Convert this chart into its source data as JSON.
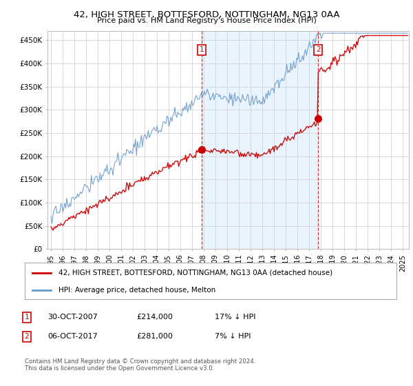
{
  "title": "42, HIGH STREET, BOTTESFORD, NOTTINGHAM, NG13 0AA",
  "subtitle": "Price paid vs. HM Land Registry's House Price Index (HPI)",
  "red_label": "42, HIGH STREET, BOTTESFORD, NOTTINGHAM, NG13 0AA (detached house)",
  "blue_label": "HPI: Average price, detached house, Melton",
  "annotation1_date": "30-OCT-2007",
  "annotation1_price": "£214,000",
  "annotation1_hpi": "17% ↓ HPI",
  "annotation2_date": "06-OCT-2017",
  "annotation2_price": "£281,000",
  "annotation2_hpi": "7% ↓ HPI",
  "footer": "Contains HM Land Registry data © Crown copyright and database right 2024.\nThis data is licensed under the Open Government Licence v3.0.",
  "vline1_year": 2007.83,
  "vline2_year": 2017.76,
  "marker1_val": 214000,
  "marker2_val": 281000,
  "ylim": [
    0,
    470000
  ],
  "yticks": [
    0,
    50000,
    100000,
    150000,
    200000,
    250000,
    300000,
    350000,
    400000,
    450000
  ],
  "background_color": "#ffffff",
  "plot_bg_color": "#ffffff",
  "grid_color": "#cccccc",
  "red_color": "#cc0000",
  "blue_color": "#6699cc",
  "shade_color": "#ddeeff"
}
